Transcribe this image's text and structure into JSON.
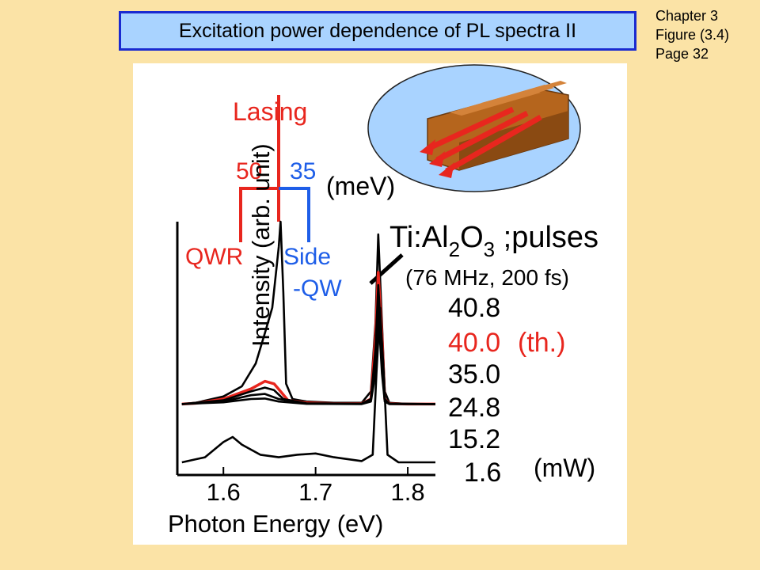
{
  "slide": {
    "title": "Excitation power dependence of PL spectra II",
    "meta": {
      "chapter": "Chapter 3",
      "figure": "Figure (3.4)",
      "page": "Page 32"
    }
  },
  "colors": {
    "red": "#e8261e",
    "blue": "#1e5ee8",
    "black": "#000000",
    "title_border": "#1a2ad0",
    "title_fill": "#a9d3ff",
    "background": "#fbe3a6"
  },
  "chart_data": {
    "type": "line",
    "xlabel": "Photon Energy (eV)",
    "ylabel": "Intensity (arb. unit)",
    "xticks": [
      "1.6",
      "1.7",
      "1.8"
    ],
    "xlim": [
      1.55,
      1.83
    ],
    "ylim": [
      0,
      1
    ],
    "energy_labels": {
      "lasing": "Lasing",
      "qwr": "QWR",
      "side_qw_1": "Side",
      "side_qw_2": "-QW",
      "split_qwr": "50",
      "split_side": "35",
      "unit": "(meV)"
    },
    "excitation": {
      "label_1": "Ti:Al",
      "sub_1": "2",
      "label_2": "O",
      "sub_2": "3",
      "label_3": " ;pulses",
      "detail": "(76 MHz, 200 fs)"
    },
    "powers": [
      "40.8",
      "40.0",
      "35.0",
      "24.8",
      "15.2",
      "1.6"
    ],
    "threshold_suffix": "(th.)",
    "power_unit": "(mW)",
    "series": [
      {
        "name": "40.8",
        "color": "#000000",
        "x": [
          1.555,
          1.57,
          1.6,
          1.62,
          1.635,
          1.645,
          1.653,
          1.66,
          1.662,
          1.665,
          1.668,
          1.675,
          1.69,
          1.72,
          1.75,
          1.76,
          1.765,
          1.768,
          1.772,
          1.775,
          1.78,
          1.8,
          1.83
        ],
        "y": [
          0.28,
          0.285,
          0.31,
          0.35,
          0.44,
          0.56,
          0.66,
          0.9,
          1.0,
          0.72,
          0.36,
          0.3,
          0.29,
          0.285,
          0.285,
          0.33,
          0.6,
          0.95,
          0.6,
          0.33,
          0.285,
          0.28,
          0.28
        ]
      },
      {
        "name": "40.0",
        "color": "#e8261e",
        "x": [
          1.555,
          1.57,
          1.6,
          1.63,
          1.645,
          1.655,
          1.662,
          1.67,
          1.69,
          1.72,
          1.75,
          1.76,
          1.765,
          1.768,
          1.772,
          1.775,
          1.78,
          1.8,
          1.83
        ],
        "y": [
          0.28,
          0.283,
          0.3,
          0.34,
          0.37,
          0.36,
          0.33,
          0.295,
          0.285,
          0.282,
          0.282,
          0.3,
          0.55,
          0.8,
          0.55,
          0.3,
          0.282,
          0.28,
          0.28
        ]
      },
      {
        "name": "35.0",
        "color": "#000000",
        "x": [
          1.555,
          1.6,
          1.63,
          1.645,
          1.655,
          1.665,
          1.69,
          1.75,
          1.76,
          1.765,
          1.768,
          1.772,
          1.775,
          1.78,
          1.83
        ],
        "y": [
          0.28,
          0.295,
          0.33,
          0.345,
          0.335,
          0.3,
          0.283,
          0.282,
          0.3,
          0.5,
          0.75,
          0.5,
          0.3,
          0.282,
          0.28
        ]
      },
      {
        "name": "24.8",
        "color": "#000000",
        "x": [
          1.555,
          1.6,
          1.63,
          1.645,
          1.66,
          1.69,
          1.75,
          1.76,
          1.765,
          1.768,
          1.772,
          1.775,
          1.78,
          1.83
        ],
        "y": [
          0.28,
          0.29,
          0.315,
          0.32,
          0.3,
          0.282,
          0.281,
          0.295,
          0.45,
          0.7,
          0.45,
          0.295,
          0.281,
          0.28
        ]
      },
      {
        "name": "15.2",
        "color": "#000000",
        "x": [
          1.555,
          1.6,
          1.63,
          1.645,
          1.66,
          1.69,
          1.75,
          1.76,
          1.765,
          1.768,
          1.772,
          1.775,
          1.78,
          1.83
        ],
        "y": [
          0.28,
          0.287,
          0.3,
          0.302,
          0.29,
          0.281,
          0.28,
          0.29,
          0.4,
          0.65,
          0.4,
          0.29,
          0.28,
          0.28
        ]
      },
      {
        "name": "1.6",
        "color": "#000000",
        "x": [
          1.555,
          1.58,
          1.6,
          1.61,
          1.62,
          1.64,
          1.66,
          1.68,
          1.7,
          1.72,
          1.75,
          1.762,
          1.766,
          1.77,
          1.774,
          1.778,
          1.79,
          1.83
        ],
        "y": [
          0.05,
          0.07,
          0.13,
          0.15,
          0.12,
          0.08,
          0.07,
          0.08,
          0.085,
          0.07,
          0.055,
          0.08,
          0.4,
          0.66,
          0.4,
          0.08,
          0.05,
          0.05
        ]
      }
    ]
  }
}
